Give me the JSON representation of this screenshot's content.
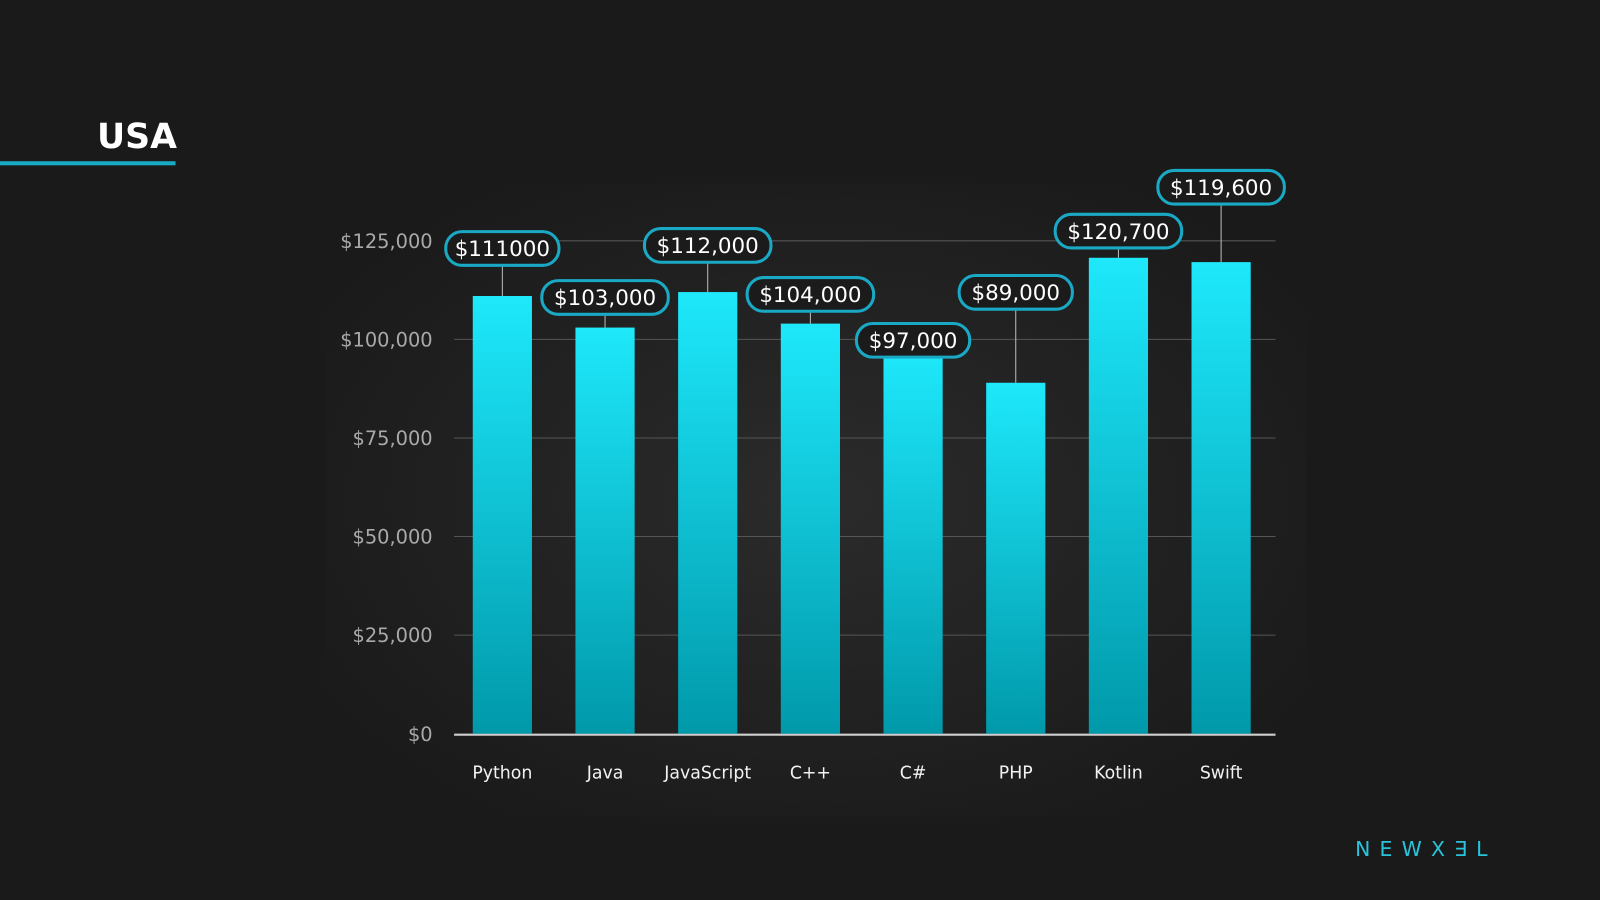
{
  "title": "USA",
  "logo": "NEWX∃L",
  "colors": {
    "background": "#1a1a1a",
    "bar_top": "#1ee8fb",
    "bar_bottom": "#0099aa",
    "accent": "#1aa9c4"
  },
  "chart_data": {
    "type": "bar",
    "title": "USA",
    "xlabel": "",
    "ylabel": "",
    "ylim": [
      0,
      125000
    ],
    "grid": true,
    "categories": [
      "Python",
      "Java",
      "JavaScript",
      "C++",
      "C#",
      "PHP",
      "Kotlin",
      "Swift"
    ],
    "values": [
      111000,
      103000,
      112000,
      104000,
      97000,
      89000,
      120700,
      119600
    ],
    "data_labels": [
      "$111000",
      "$103,000",
      "$112,000",
      "$104,000",
      "$97,000",
      "$89,000",
      "$120,700",
      "$119,600"
    ],
    "yticks": [
      0,
      25000,
      50000,
      75000,
      100000,
      125000
    ],
    "ytick_labels": [
      "$0",
      "$25,000",
      "$50,000",
      "$75,000",
      "$100,000",
      "$125,000"
    ]
  }
}
